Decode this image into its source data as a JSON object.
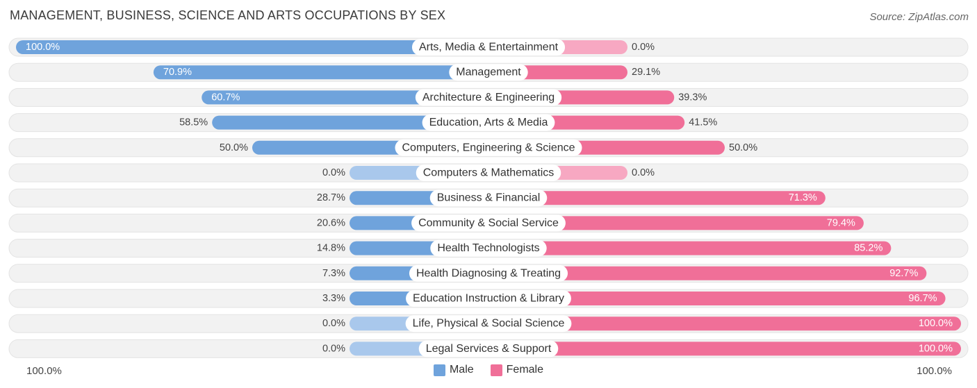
{
  "title": "MANAGEMENT, BUSINESS, SCIENCE AND ARTS OCCUPATIONS BY SEX",
  "source": "Source: ZipAtlas.com",
  "colors": {
    "male": "#6fa3dc",
    "male_light": "#a9c8ec",
    "female": "#f06f98",
    "female_light": "#f7a8c2",
    "track": "#f1f1f1"
  },
  "chart_data": {
    "type": "bar",
    "orientation": "horizontal-diverging",
    "categories": [
      "Arts, Media & Entertainment",
      "Management",
      "Architecture & Engineering",
      "Education, Arts & Media",
      "Computers, Engineering & Science",
      "Computers & Mathematics",
      "Business & Financial",
      "Community & Social Service",
      "Health Technologists",
      "Health Diagnosing & Treating",
      "Education Instruction & Library",
      "Life, Physical & Social Science",
      "Legal Services & Support"
    ],
    "series": [
      {
        "name": "Male",
        "values": [
          100.0,
          70.9,
          60.7,
          58.5,
          50.0,
          0.0,
          28.7,
          20.6,
          14.8,
          7.3,
          3.3,
          0.0,
          0.0
        ],
        "labels": [
          "100.0%",
          "70.9%",
          "60.7%",
          "58.5%",
          "50.0%",
          "0.0%",
          "28.7%",
          "20.6%",
          "14.8%",
          "7.3%",
          "3.3%",
          "0.0%",
          "0.0%"
        ]
      },
      {
        "name": "Female",
        "values": [
          0.0,
          29.1,
          39.3,
          41.5,
          50.0,
          0.0,
          71.3,
          79.4,
          85.2,
          92.7,
          96.7,
          100.0,
          100.0
        ],
        "labels": [
          "0.0%",
          "29.1%",
          "39.3%",
          "41.5%",
          "50.0%",
          "0.0%",
          "71.3%",
          "79.4%",
          "85.2%",
          "92.7%",
          "96.7%",
          "100.0%",
          "100.0%"
        ]
      }
    ],
    "axis_left_label": "100.0%",
    "axis_right_label": "100.0%",
    "xlim": [
      0,
      100
    ],
    "legend_position": "bottom-center"
  },
  "legend": {
    "male_label": "Male",
    "female_label": "Female"
  }
}
